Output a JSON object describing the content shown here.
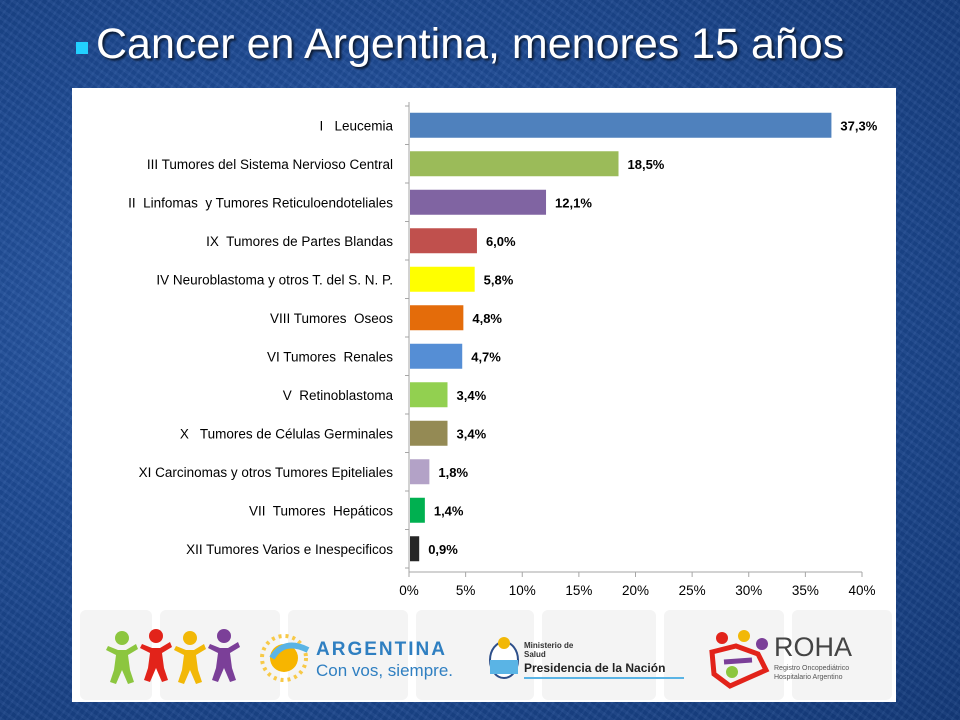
{
  "title": "Cancer en Argentina, menores 15 años",
  "chart_data": {
    "type": "bar",
    "orientation": "horizontal",
    "categories": [
      "I   Leucemia",
      "III Tumores del Sistema Nervioso Central",
      "II  Linfomas  y Tumores Reticuloendoteliales",
      "IX  Tumores de Partes Blandas",
      "IV Neuroblastoma y otros T. del S. N. P.",
      "VIII Tumores  Oseos",
      "VI Tumores  Renales",
      "V  Retinoblastoma",
      "X   Tumores de Células Germinales",
      "XI Carcinomas y otros Tumores Epiteliales",
      "VII  Tumores  Hepáticos",
      "XII Tumores Varios e Inespecificos"
    ],
    "values": [
      37.3,
      18.5,
      12.1,
      6.0,
      5.8,
      4.8,
      4.7,
      3.4,
      3.4,
      1.8,
      1.4,
      0.9
    ],
    "value_labels": [
      "37,3%",
      "18,5%",
      "12,1%",
      "6,0%",
      "5,8%",
      "4,8%",
      "4,7%",
      "3,4%",
      "3,4%",
      "1,8%",
      "1,4%",
      "0,9%"
    ],
    "colors": [
      "#4f81bd",
      "#9bbb59",
      "#8064a2",
      "#c0504d",
      "#ffff00",
      "#e46c0a",
      "#558ed5",
      "#92d050",
      "#948a54",
      "#b3a2c7",
      "#00b050",
      "#262626"
    ],
    "xlim": [
      0,
      40
    ],
    "xticks": [
      "0%",
      "5%",
      "10%",
      "15%",
      "20%",
      "25%",
      "30%",
      "35%",
      "40%"
    ],
    "xlabel": "",
    "ylabel": "",
    "grid": false,
    "legend": "none"
  },
  "logos": {
    "argentina_name": "ARGENTINA",
    "argentina_slogan": "Con vos, siempre.",
    "ministerio_line1": "Ministerio de",
    "ministerio_line2": "Salud",
    "presidencia": "Presidencia de la Nación",
    "roha_name": "ROHA",
    "roha_line1": "Registro Oncopediátrico",
    "roha_line2": "Hospitalario Argentino"
  }
}
